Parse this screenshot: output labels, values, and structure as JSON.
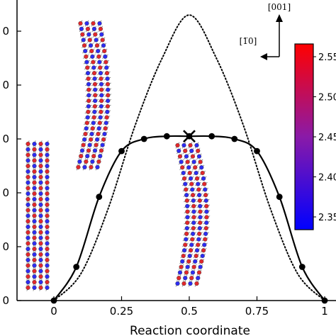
{
  "chart_data": {
    "type": "line",
    "xlabel": "Reaction coordinate",
    "ylabel": "",
    "xlim": [
      -0.2,
      1.02
    ],
    "ylim": [
      0,
      1.0
    ],
    "x_ticks": [
      0,
      0.25,
      0.5,
      0.75,
      1
    ],
    "x_tick_labels": [
      "0",
      "0.25",
      "0.5",
      "0.75",
      "1"
    ],
    "y_ticks": [
      0,
      0.2,
      0.4,
      0.6,
      0.8,
      1.0
    ],
    "y_tick_labels": [
      "0",
      "0",
      "0",
      "0",
      "0",
      "0"
    ],
    "series": [
      {
        "style": "solid-with-markers",
        "color": "#000000",
        "x": [
          0,
          0.083,
          0.167,
          0.25,
          0.333,
          0.417,
          0.5,
          0.583,
          0.667,
          0.75,
          0.833,
          0.917,
          1.0
        ],
        "y": [
          0,
          0.125,
          0.385,
          0.555,
          0.6,
          0.61,
          0.61,
          0.61,
          0.6,
          0.555,
          0.385,
          0.125,
          0
        ]
      },
      {
        "style": "dotted",
        "color": "#000000",
        "x": [
          0,
          0.1,
          0.2,
          0.3,
          0.4,
          0.5,
          0.6,
          0.7,
          0.8,
          0.9,
          1.0
        ],
        "y": [
          0,
          0.1,
          0.34,
          0.65,
          0.9,
          1.06,
          0.9,
          0.65,
          0.34,
          0.1,
          0
        ]
      }
    ],
    "annotations": [
      {
        "marker": "x",
        "x": 0.5,
        "y": 0.61
      }
    ],
    "direction_labels": [
      "[001]",
      "[1̅0]"
    ],
    "colorbar": {
      "colors": [
        "#0000ff",
        "#ff0000"
      ],
      "tick_labels": [
        "2.55",
        "2.50",
        "2.45",
        "2.40",
        "2.35"
      ]
    },
    "grid": false
  }
}
